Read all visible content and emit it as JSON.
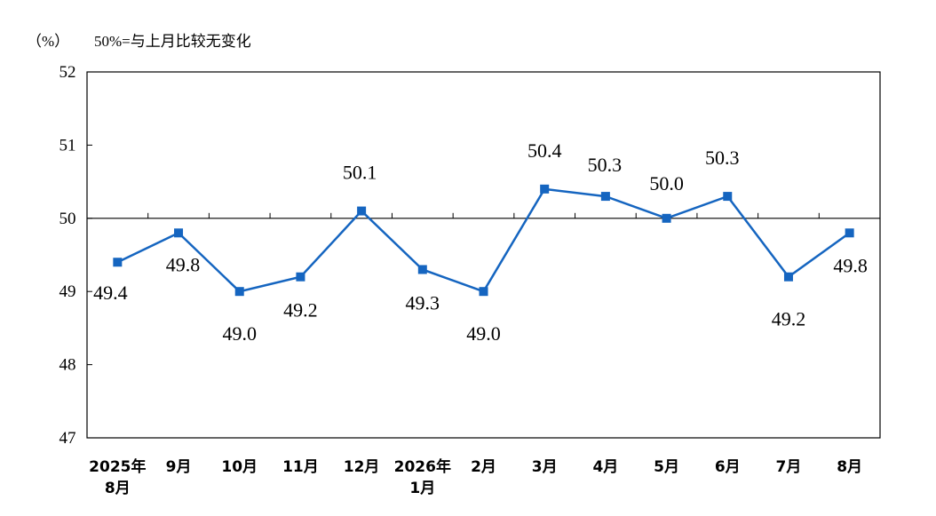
{
  "chart_data": {
    "type": "line",
    "unit_label": "（%）",
    "note": "50%=与上月比较无变化",
    "categories": [
      [
        "2025年",
        "8月"
      ],
      [
        "9月"
      ],
      [
        "10月"
      ],
      [
        "11月"
      ],
      [
        "12月"
      ],
      [
        "2026年",
        "1月"
      ],
      [
        "2月"
      ],
      [
        "3月"
      ],
      [
        "4月"
      ],
      [
        "5月"
      ],
      [
        "6月"
      ],
      [
        "7月"
      ],
      [
        "8月"
      ]
    ],
    "series": [
      {
        "values": [
          49.4,
          49.8,
          49.0,
          49.2,
          50.1,
          49.3,
          49.0,
          50.4,
          50.3,
          50.0,
          50.3,
          49.2,
          49.8
        ],
        "labels": [
          "49.4",
          "49.8",
          "49.0",
          "49.2",
          "50.1",
          "49.3",
          "49.0",
          "50.4",
          "50.3",
          "50.0",
          "50.3",
          "49.2",
          "49.8"
        ],
        "color": "#1565c0"
      }
    ],
    "y_ticks": [
      "47",
      "48",
      "49",
      "50",
      "51",
      "52"
    ],
    "ylim": [
      47,
      52
    ],
    "reference_line": 50,
    "grid": false
  }
}
